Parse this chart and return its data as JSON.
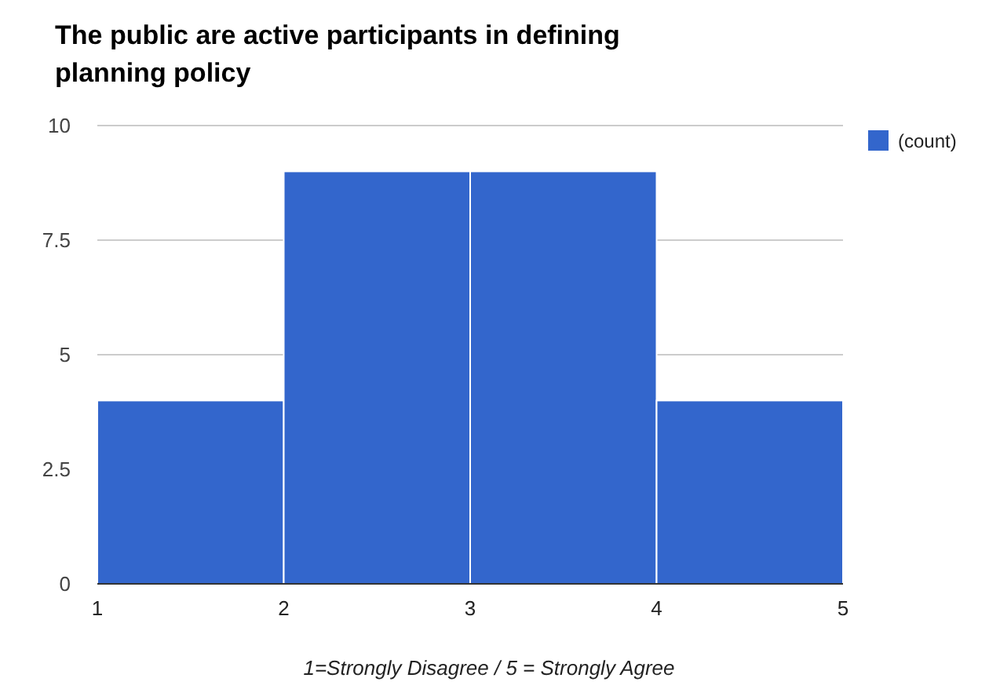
{
  "chart_data": {
    "type": "histogram",
    "title": "The public are active participants in defining planning policy",
    "xlabel": "1=Strongly Disagree / 5 = Strongly Agree",
    "bins": [
      1,
      2,
      3,
      4,
      5
    ],
    "series": [
      {
        "name": "(count)",
        "color": "#3366cc",
        "values": [
          4,
          9,
          9,
          4
        ]
      }
    ],
    "xlim": [
      1,
      5
    ],
    "xticks": [
      1,
      2,
      3,
      4,
      5
    ],
    "ylim": [
      0,
      10
    ],
    "yticks": [
      0,
      {
        "value": 2.5,
        "label": "2.5"
      },
      5,
      {
        "value": 7.5,
        "label": "7.5"
      },
      10
    ],
    "grid": "y",
    "legend": "right"
  }
}
